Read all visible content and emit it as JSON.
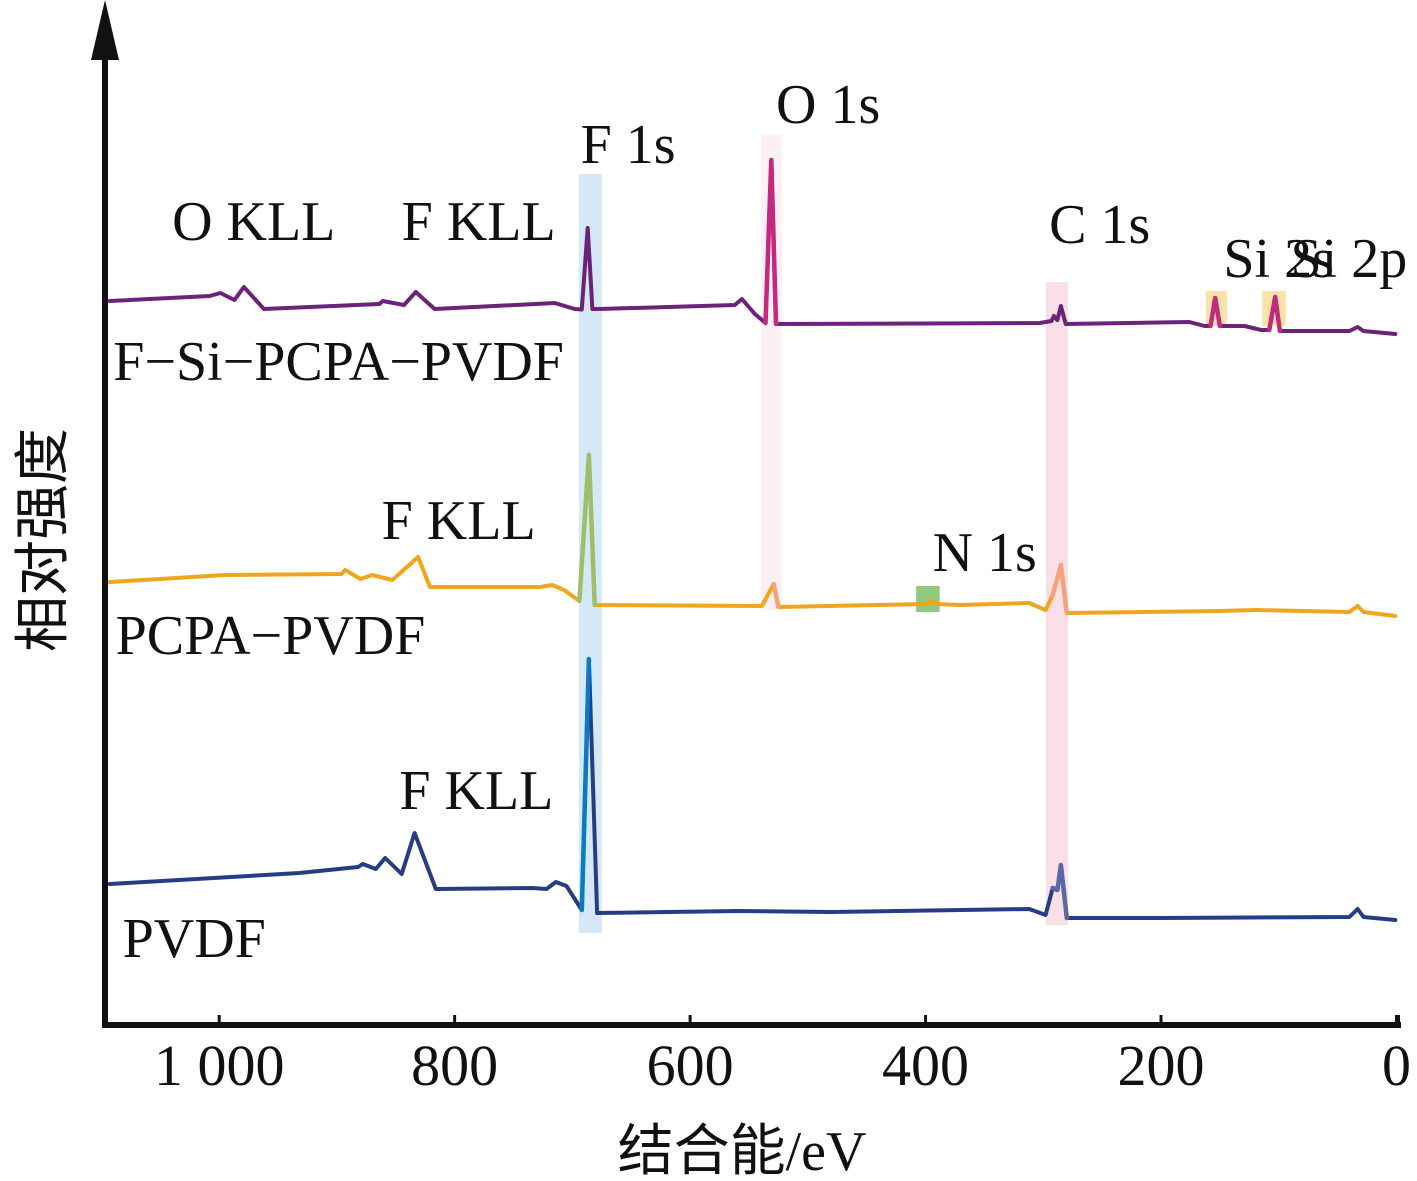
{
  "chart_data": {
    "type": "line",
    "title": "",
    "xlabel": "结合能/eV",
    "ylabel": "相对强度",
    "xlim": [
      1097,
      -3
    ],
    "ylim": [
      0,
      102
    ],
    "x_reversed": true,
    "x_ticks": [
      1000,
      800,
      600,
      400,
      200,
      0
    ],
    "x_tick_labels": [
      "1 000",
      "800",
      "600",
      "400",
      "200",
      "0"
    ],
    "y_ticks": [],
    "grid": false,
    "legend": "inline labels at left of each trace",
    "series": [
      {
        "name": "F-Si-PCPA-PVDF",
        "label": "F−Si−PCPA−PVDF",
        "color": "#6b2278",
        "points": [
          [
            1093,
            72.4
          ],
          [
            1008,
            72.9
          ],
          [
            999,
            73.2
          ],
          [
            987,
            72.5
          ],
          [
            979,
            73.8
          ],
          [
            962,
            71.6
          ],
          [
            864,
            72.1
          ],
          [
            861,
            72.4
          ],
          [
            843,
            72.0
          ],
          [
            833,
            73.3
          ],
          [
            817,
            71.6
          ],
          [
            715,
            72.2
          ],
          [
            698,
            71.6
          ],
          [
            692,
            71.55
          ],
          [
            687,
            79.7
          ],
          [
            683,
            71.6
          ],
          [
            677,
            71.6
          ],
          [
            562,
            72.0
          ],
          [
            556,
            72.6
          ],
          [
            545,
            71.1
          ],
          [
            536,
            70.2
          ],
          [
            531,
            86.5
          ],
          [
            527,
            70.1
          ],
          [
            303,
            70.2
          ],
          [
            293,
            70.4
          ],
          [
            291,
            70.9
          ],
          [
            288,
            70.5
          ],
          [
            285,
            71.9
          ],
          [
            281,
            70.1
          ],
          [
            176,
            70.3
          ],
          [
            163,
            69.9
          ],
          [
            158,
            69.9
          ],
          [
            154,
            72.7
          ],
          [
            150,
            69.9
          ],
          [
            129,
            69.9
          ],
          [
            115,
            69.5
          ],
          [
            108,
            69.5
          ],
          [
            103,
            72.8
          ],
          [
            99,
            69.4
          ],
          [
            40,
            69.4
          ],
          [
            33,
            69.8
          ],
          [
            28,
            69.4
          ],
          [
            1,
            69.1
          ]
        ],
        "accent_peaks": [
          {
            "label": "O 1s",
            "ev_range": [
              540,
              524
            ],
            "color": "#c12a80"
          },
          {
            "label": "Si 2s",
            "ev_range": [
              159,
              149
            ],
            "color": "#c12a80"
          },
          {
            "label": "Si 2p",
            "ev_range": [
              108,
              98
            ],
            "color": "#c12a80"
          }
        ]
      },
      {
        "name": "PCPA-PVDF",
        "label": "PCPA−PVDF",
        "color": "#efa51d",
        "points": [
          [
            1093,
            44.3
          ],
          [
            995,
            45.0
          ],
          [
            896,
            45.1
          ],
          [
            893,
            45.5
          ],
          [
            880,
            44.6
          ],
          [
            870,
            45.0
          ],
          [
            853,
            44.5
          ],
          [
            831,
            46.8
          ],
          [
            821,
            43.8
          ],
          [
            728,
            43.8
          ],
          [
            717,
            44.0
          ],
          [
            707,
            43.5
          ],
          [
            694,
            42.4
          ],
          [
            686,
            57.0
          ],
          [
            681,
            42.0
          ],
          [
            539,
            41.9
          ],
          [
            529,
            44.1
          ],
          [
            525,
            41.8
          ],
          [
            397,
            42.1
          ],
          [
            394,
            42.5
          ],
          [
            391,
            42.1
          ],
          [
            371,
            42.0
          ],
          [
            312,
            42.2
          ],
          [
            298,
            41.5
          ],
          [
            292,
            43.0
          ],
          [
            288,
            44.7
          ],
          [
            285,
            46.0
          ],
          [
            280,
            41.2
          ],
          [
            151,
            41.4
          ],
          [
            119,
            41.5
          ],
          [
            40,
            41.3
          ],
          [
            33,
            41.9
          ],
          [
            28,
            41.3
          ],
          [
            1,
            40.9
          ]
        ],
        "accent_peaks": [
          {
            "label": "F 1s",
            "ev_range": [
              694,
              680
            ],
            "color": "#9dbf6b"
          },
          {
            "label": "O 1s",
            "ev_range": [
              534,
              524
            ],
            "color": "#f4a27c"
          },
          {
            "label": "C 1s",
            "ev_range": [
              294,
              279
            ],
            "color": "#f4a27c"
          }
        ]
      },
      {
        "name": "PVDF",
        "label": "PVDF",
        "color": "#263d86",
        "points": [
          [
            1093,
            14.1
          ],
          [
            932,
            15.2
          ],
          [
            882,
            15.8
          ],
          [
            878,
            16.1
          ],
          [
            867,
            15.6
          ],
          [
            859,
            16.7
          ],
          [
            845,
            15.1
          ],
          [
            834,
            19.2
          ],
          [
            816,
            13.6
          ],
          [
            734,
            13.7
          ],
          [
            722,
            13.6
          ],
          [
            714,
            14.3
          ],
          [
            705,
            13.9
          ],
          [
            692,
            11.5
          ],
          [
            686,
            36.6
          ],
          [
            679,
            11.2
          ],
          [
            560,
            11.4
          ],
          [
            480,
            11.3
          ],
          [
            312,
            11.6
          ],
          [
            298,
            11.0
          ],
          [
            292,
            13.7
          ],
          [
            288,
            13.5
          ],
          [
            285,
            16.0
          ],
          [
            280,
            10.7
          ],
          [
            200,
            10.7
          ],
          [
            40,
            10.8
          ],
          [
            33,
            11.6
          ],
          [
            28,
            10.8
          ],
          [
            1,
            10.5
          ]
        ],
        "accent_peaks": [
          {
            "label": "F 1s",
            "ev_range": [
              694,
              680
            ],
            "color": "#0c7ac2"
          },
          {
            "label": "C 1s",
            "ev_range": [
              294,
              279
            ],
            "color": "#5a68a9"
          }
        ]
      }
    ],
    "highlight_bands": [
      {
        "label": "F 1s",
        "ev_range": [
          694.5,
          675
        ],
        "i_range": [
          9.2,
          85.1
        ],
        "color": "#cfe6f5"
      },
      {
        "label": "O 1s",
        "ev_range": [
          540,
          522
        ],
        "i_range": [
          41.5,
          89.0
        ],
        "color": "#fdeef2"
      },
      {
        "label": "C 1s",
        "ev_range": [
          298,
          279
        ],
        "i_range": [
          10.0,
          74.3
        ],
        "color": "#fadbe6"
      },
      {
        "label": "Si 2s",
        "ev_range": [
          162,
          144
        ],
        "i_range": [
          69.9,
          73.4
        ],
        "color": "#fbe09c"
      },
      {
        "label": "Si 2p",
        "ev_range": [
          114,
          94
        ],
        "i_range": [
          69.9,
          73.4
        ],
        "color": "#fbe09c"
      },
      {
        "label": "N 1s",
        "ev_range": [
          408,
          388
        ],
        "i_range": [
          41.3,
          43.9
        ],
        "color": "#7cc16b"
      }
    ],
    "annotations": [
      {
        "text": "O KLL",
        "ev": 1040,
        "i": 78.5
      },
      {
        "text": "F KLL",
        "ev": 845,
        "i": 78.5
      },
      {
        "text": "F 1s",
        "ev": 693,
        "i": 86.2
      },
      {
        "text": "O 1s",
        "ev": 527,
        "i": 90.2
      },
      {
        "text": "C 1s",
        "ev": 295,
        "i": 78.2
      },
      {
        "text": "Si 2s",
        "ev": 147,
        "i": 74.8
      },
      {
        "text": "Si 2p",
        "ev": 90,
        "i": 74.8
      },
      {
        "text": "F KLL",
        "ev": 862,
        "i": 48.6
      },
      {
        "text": "N 1s",
        "ev": 394,
        "i": 45.4
      },
      {
        "text": "F KLL",
        "ev": 847,
        "i": 21.6
      }
    ],
    "series_label_positions": [
      {
        "series": "F-Si-PCPA-PVDF",
        "ev": 1090,
        "i": 64.5
      },
      {
        "series": "PCPA-PVDF",
        "ev": 1088,
        "i": 37.1
      },
      {
        "series": "PVDF",
        "ev": 1082,
        "i": 6.8
      }
    ]
  }
}
